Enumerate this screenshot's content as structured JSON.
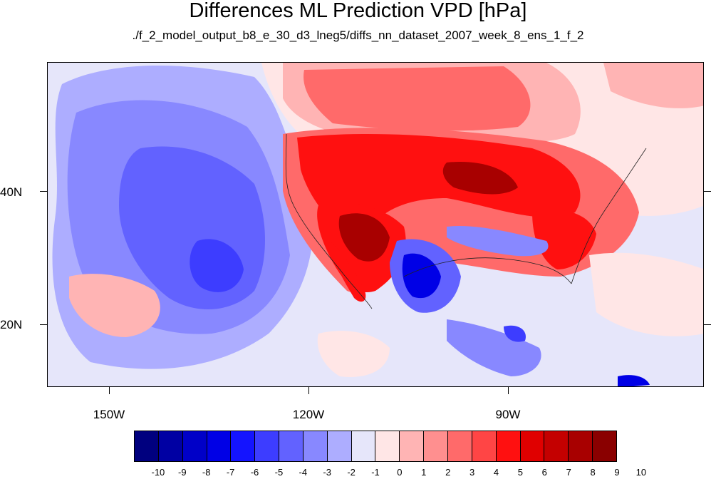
{
  "title": "Differences ML Prediction VPD [hPa]",
  "subtitle": "./f_2_model_output_b8_e_30_d3_lneg5/diffs_nn_dataset_2007_week_8_ens_1_f_2",
  "axes": {
    "lat_labels": [
      "40N",
      "20N"
    ],
    "lon_labels": [
      "150W",
      "120W",
      "90W"
    ]
  },
  "colorbar": {
    "labels": [
      "-10",
      "-9",
      "-8",
      "-7",
      "-6",
      "-5",
      "-4",
      "-3",
      "-2",
      "-1",
      "0",
      "1",
      "2",
      "3",
      "4",
      "5",
      "6",
      "7",
      "8",
      "9",
      "10"
    ],
    "colors": [
      "#00007f",
      "#0000a3",
      "#0000c8",
      "#0000e6",
      "#1414ff",
      "#3d3dff",
      "#6262ff",
      "#8888ff",
      "#adadff",
      "#e6e6fa",
      "#ffe6e6",
      "#ffb4b4",
      "#ff8f8f",
      "#ff6a6a",
      "#ff4545",
      "#ff1010",
      "#e00000",
      "#c40000",
      "#a80000",
      "#8a0000"
    ]
  },
  "palette": {
    "ocean_base": "#e6e6fa",
    "light_blue": "#adadff",
    "mid_blue": "#8888ff",
    "blue": "#6262ff",
    "deep_blue": "#3d3dff",
    "light_red": "#ffb4b4",
    "mid_red": "#ff6a6a",
    "red": "#ff1010",
    "dark_red": "#a80000",
    "pink": "#ffe6e6"
  }
}
